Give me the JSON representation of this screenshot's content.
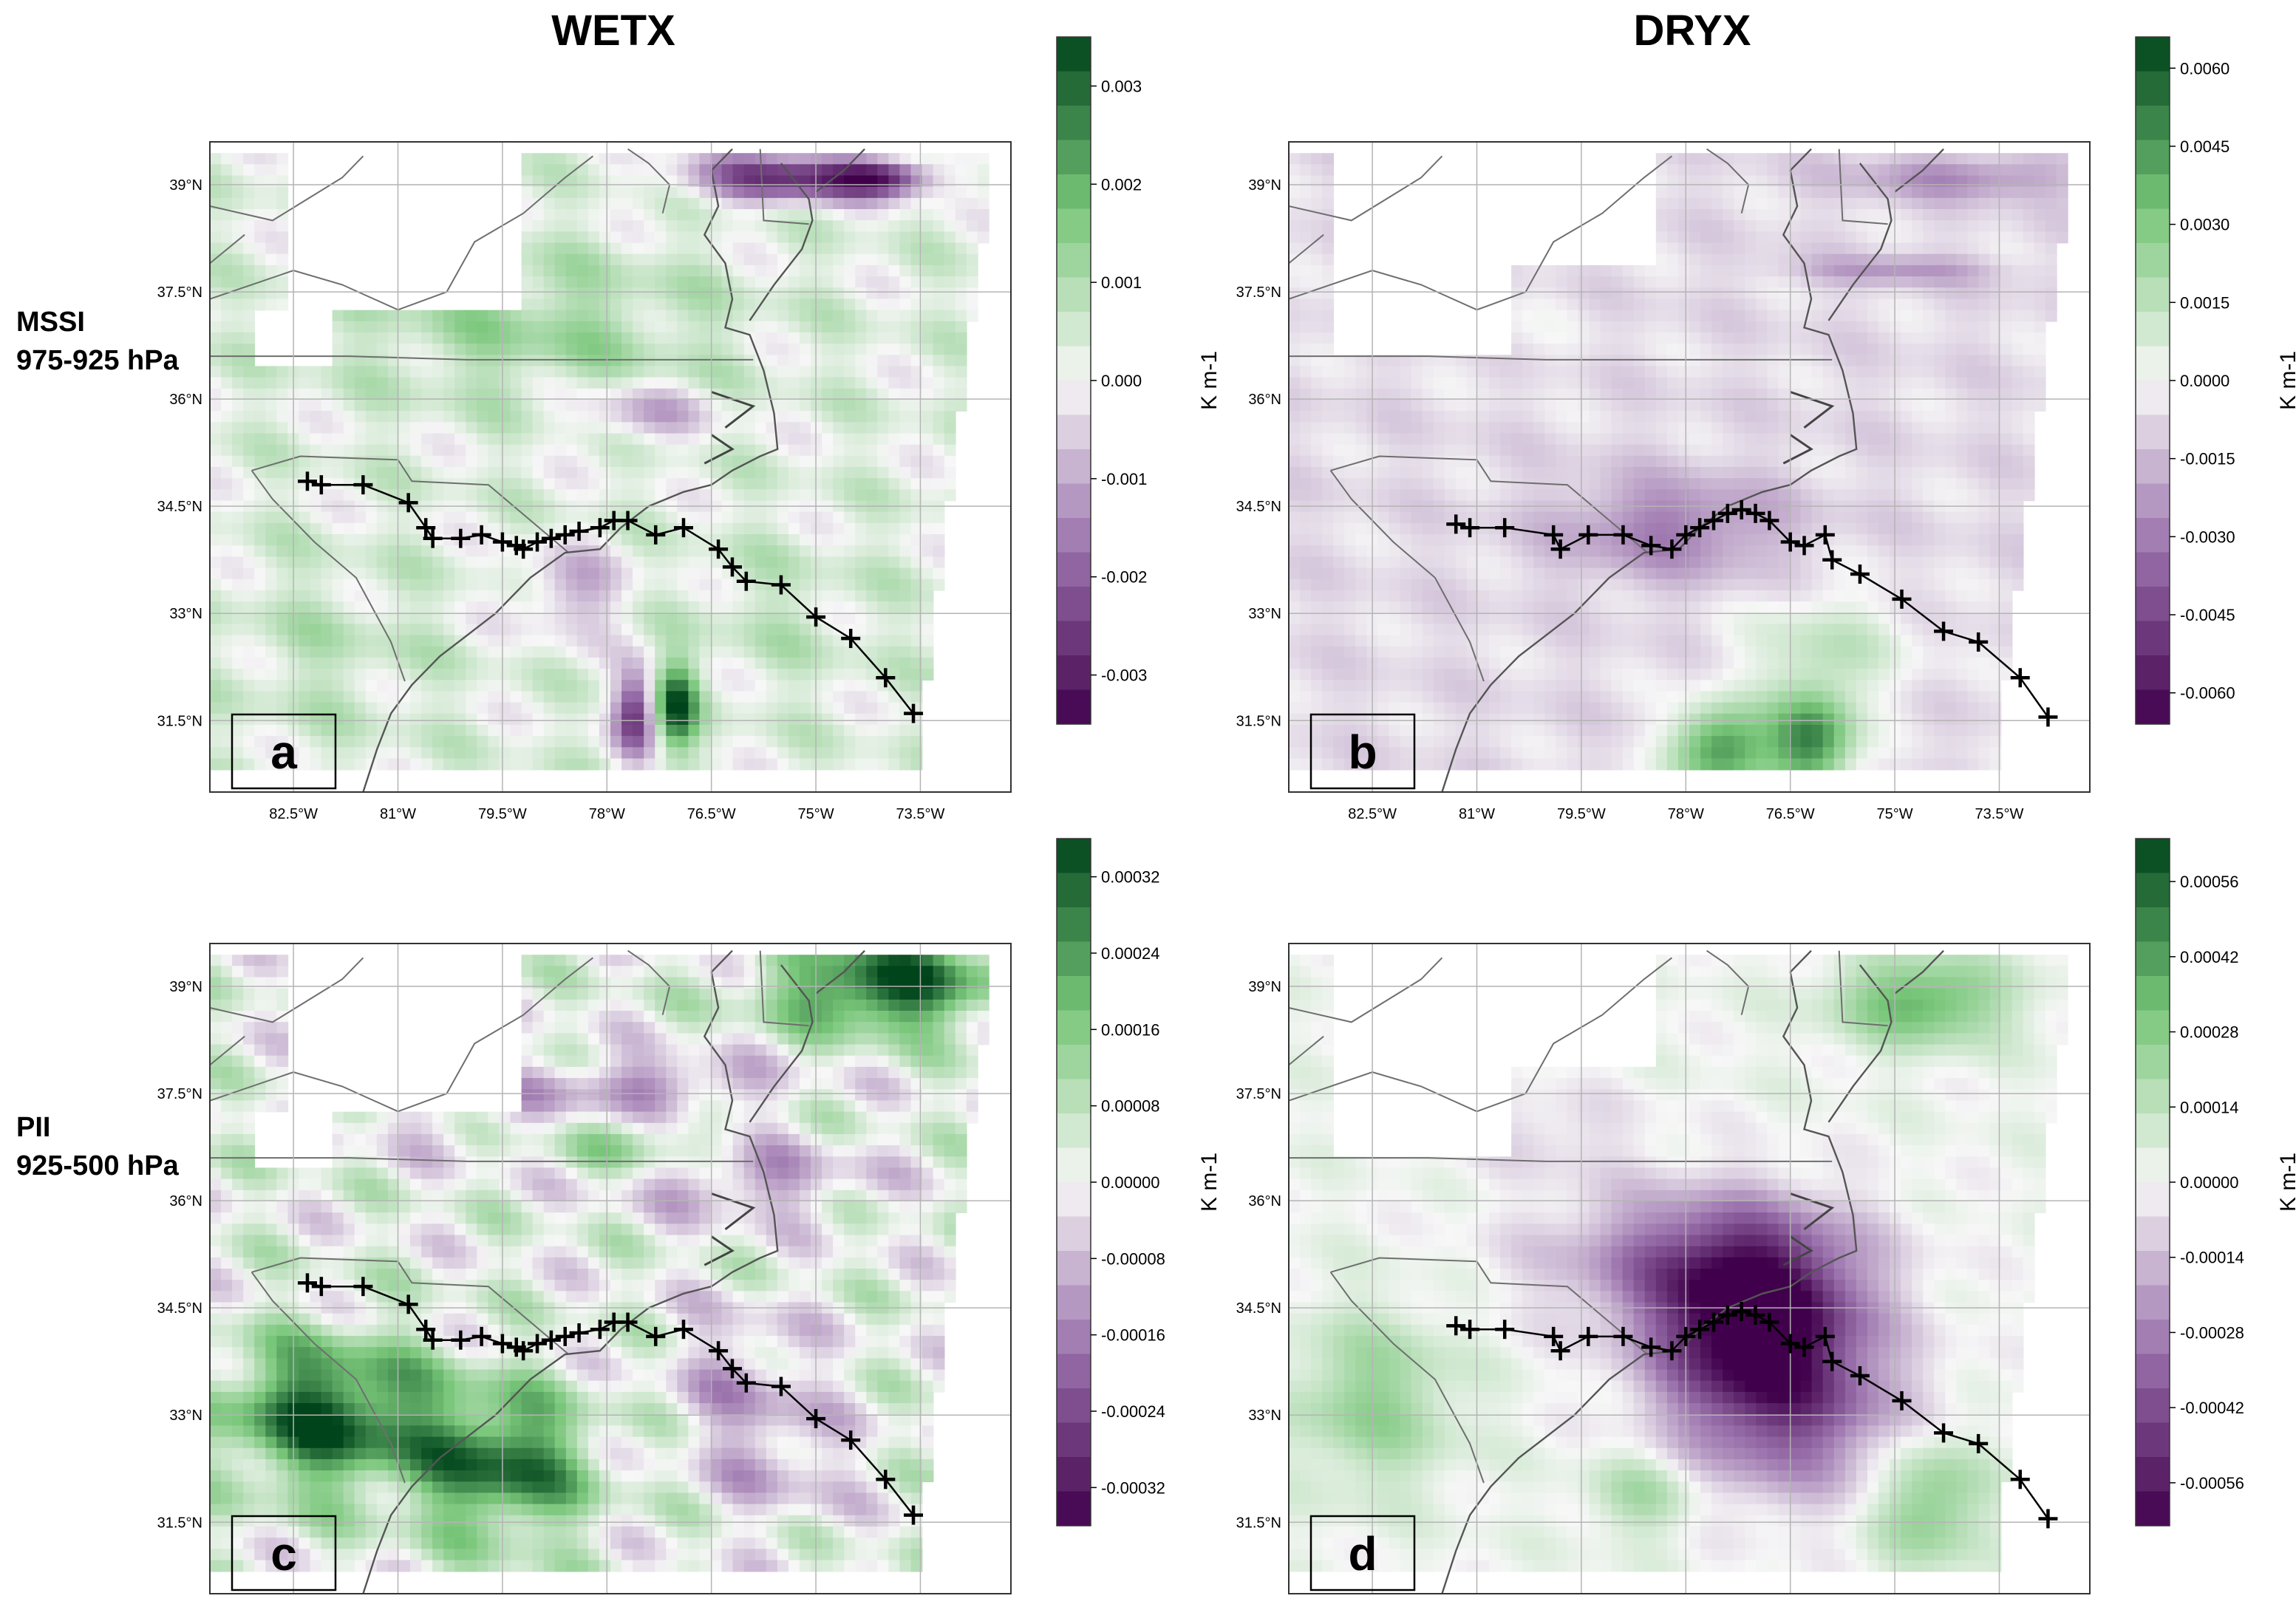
{
  "columns": [
    "WETX",
    "DRYX"
  ],
  "rows": [
    {
      "line1": "MSSI",
      "line2": "975-925 hPa"
    },
    {
      "line1": "PII",
      "line2": "925-500 hPa"
    }
  ],
  "colors": {
    "green_dark": "#00441b",
    "white": "#f7f7f7",
    "purple_dark": "#40004b",
    "track": "#000000",
    "border": "#6e6e6e",
    "grid": "#b4b4b4"
  },
  "chart_data": [
    {
      "type": "heatmap",
      "panel": "a",
      "title": "WETX",
      "row_label": "MSSI 975-925 hPa",
      "x_ticks": [
        "82.5°W",
        "81°W",
        "79.5°W",
        "78°W",
        "76.5°W",
        "75°W",
        "73.5°W"
      ],
      "y_ticks": [
        "39°N",
        "37.5°N",
        "36°N",
        "34.5°N",
        "33°N",
        "31.5°N"
      ],
      "colorbar": {
        "label": "K m-1",
        "ticks": [
          "0.003",
          "0.002",
          "0.001",
          "0.000",
          "-0.001",
          "-0.002",
          "-0.003"
        ],
        "range": [
          -0.0035,
          0.0035
        ]
      }
    },
    {
      "type": "heatmap",
      "panel": "b",
      "title": "DRYX",
      "row_label": "MSSI 975-925 hPa",
      "x_ticks": [
        "82.5°W",
        "81°W",
        "79.5°W",
        "78°W",
        "76.5°W",
        "75°W",
        "73.5°W"
      ],
      "y_ticks": [
        "39°N",
        "37.5°N",
        "36°N",
        "34.5°N",
        "33°N",
        "31.5°N"
      ],
      "colorbar": {
        "label": "K m-1",
        "ticks": [
          "0.0060",
          "0.0045",
          "0.0030",
          "0.0015",
          "0.0000",
          "-0.0015",
          "-0.0030",
          "-0.0045",
          "-0.0060"
        ],
        "range": [
          -0.0066,
          0.0066
        ]
      }
    },
    {
      "type": "heatmap",
      "panel": "c",
      "title": "WETX",
      "row_label": "PII 925-500 hPa",
      "x_ticks": [
        "82.5°W",
        "81°W",
        "79.5°W",
        "78°W",
        "76.5°W",
        "75°W",
        "73.5°W"
      ],
      "y_ticks": [
        "39°N",
        "37.5°N",
        "36°N",
        "34.5°N",
        "33°N",
        "31.5°N"
      ],
      "colorbar": {
        "label": "K m-1",
        "ticks": [
          "0.00032",
          "0.00024",
          "0.00016",
          "0.00008",
          "0.00000",
          "-0.00008",
          "-0.00016",
          "-0.00024",
          "-0.00032"
        ],
        "range": [
          -0.00036,
          0.00036
        ]
      }
    },
    {
      "type": "heatmap",
      "panel": "d",
      "title": "DRYX",
      "row_label": "PII 925-500 hPa",
      "x_ticks": [
        "82.5°W",
        "81°W",
        "79.5°W",
        "78°W",
        "76.5°W",
        "75°W",
        "73.5°W"
      ],
      "y_ticks": [
        "39°N",
        "37.5°N",
        "36°N",
        "34.5°N",
        "33°N",
        "31.5°N"
      ],
      "colorbar": {
        "label": "K m-1",
        "ticks": [
          "0.00056",
          "0.00042",
          "0.00028",
          "0.00014",
          "0.00000",
          "-0.00014",
          "-0.00028",
          "-0.00042",
          "-0.00056"
        ],
        "range": [
          -0.00064,
          0.00064
        ]
      }
    }
  ],
  "tracks": {
    "wetx": [
      [
        -82.3,
        34.85
      ],
      [
        -82.1,
        34.8
      ],
      [
        -81.5,
        34.8
      ],
      [
        -80.85,
        34.55
      ],
      [
        -80.6,
        34.2
      ],
      [
        -80.5,
        34.05
      ],
      [
        -80.1,
        34.05
      ],
      [
        -79.8,
        34.1
      ],
      [
        -79.5,
        34.0
      ],
      [
        -79.3,
        33.95
      ],
      [
        -79.2,
        33.9
      ],
      [
        -79.0,
        34.0
      ],
      [
        -78.8,
        34.05
      ],
      [
        -78.6,
        34.1
      ],
      [
        -78.4,
        34.15
      ],
      [
        -78.1,
        34.2
      ],
      [
        -77.9,
        34.3
      ],
      [
        -77.7,
        34.3
      ],
      [
        -77.3,
        34.1
      ],
      [
        -76.9,
        34.2
      ],
      [
        -76.4,
        33.9
      ],
      [
        -76.2,
        33.65
      ],
      [
        -76.0,
        33.45
      ],
      [
        -75.5,
        33.4
      ],
      [
        -75.0,
        32.95
      ],
      [
        -74.5,
        32.65
      ],
      [
        -74.0,
        32.1
      ],
      [
        -73.6,
        31.6
      ]
    ],
    "dryx": [
      [
        -81.3,
        34.25
      ],
      [
        -81.1,
        34.2
      ],
      [
        -80.6,
        34.2
      ],
      [
        -79.9,
        34.1
      ],
      [
        -79.8,
        33.9
      ],
      [
        -79.4,
        34.1
      ],
      [
        -78.9,
        34.1
      ],
      [
        -78.5,
        33.95
      ],
      [
        -78.2,
        33.9
      ],
      [
        -78.0,
        34.1
      ],
      [
        -77.8,
        34.2
      ],
      [
        -77.6,
        34.3
      ],
      [
        -77.4,
        34.4
      ],
      [
        -77.2,
        34.45
      ],
      [
        -77.0,
        34.4
      ],
      [
        -76.8,
        34.3
      ],
      [
        -76.5,
        34.0
      ],
      [
        -76.3,
        33.95
      ],
      [
        -76.0,
        34.1
      ],
      [
        -75.9,
        33.75
      ],
      [
        -75.5,
        33.55
      ],
      [
        -74.9,
        33.2
      ],
      [
        -74.3,
        32.75
      ],
      [
        -73.8,
        32.6
      ],
      [
        -73.2,
        32.1
      ],
      [
        -72.8,
        31.55
      ]
    ]
  }
}
